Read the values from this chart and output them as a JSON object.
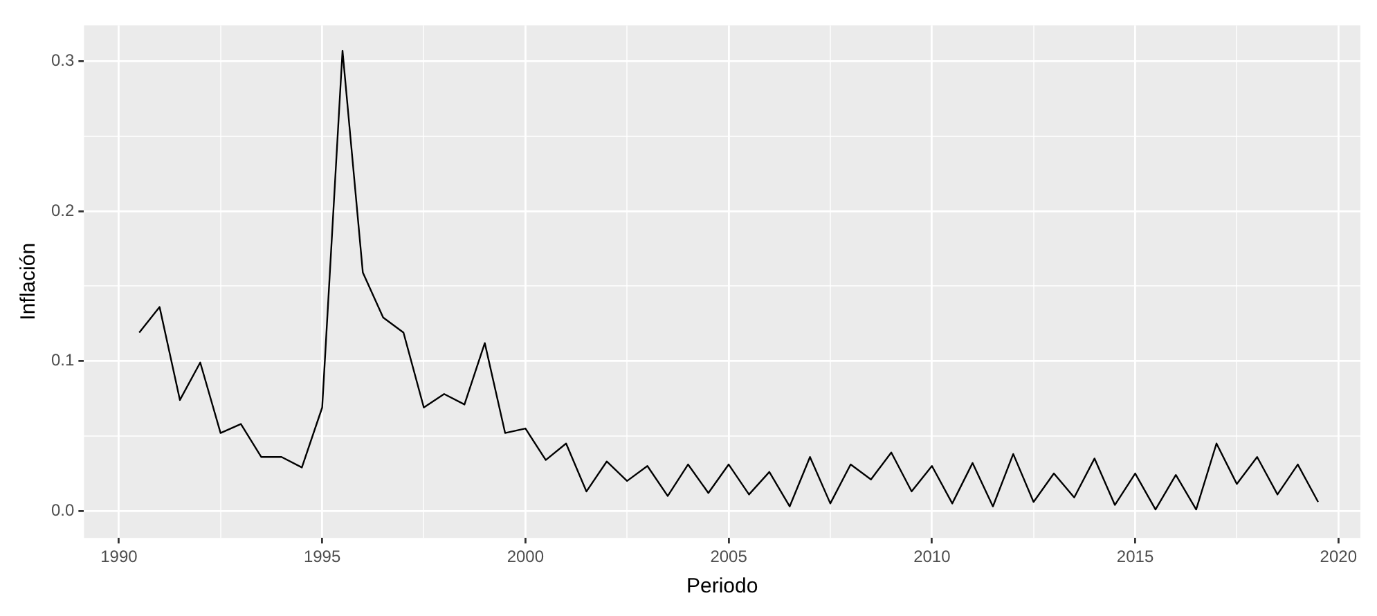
{
  "chart_data": {
    "type": "line",
    "xlabel": "Periodo",
    "ylabel": "Inflación",
    "x": [
      1990.5,
      1991,
      1991.5,
      1992,
      1992.5,
      1993,
      1993.5,
      1994,
      1994.5,
      1995,
      1995.5,
      1996,
      1996.5,
      1997,
      1997.5,
      1998,
      1998.5,
      1999,
      1999.5,
      2000,
      2000.5,
      2001,
      2001.5,
      2002,
      2002.5,
      2003,
      2003.5,
      2004,
      2004.5,
      2005,
      2005.5,
      2006,
      2006.5,
      2007,
      2007.5,
      2008,
      2008.5,
      2009,
      2009.5,
      2010,
      2010.5,
      2011,
      2011.5,
      2012,
      2012.5,
      2013,
      2013.5,
      2014,
      2014.5,
      2015,
      2015.5,
      2016,
      2016.5,
      2017,
      2017.5,
      2018,
      2018.5,
      2019,
      2019.5
    ],
    "series": [
      {
        "color": "#000000",
        "values": [
          0.119,
          0.136,
          0.074,
          0.099,
          0.052,
          0.058,
          0.036,
          0.036,
          0.029,
          0.069,
          0.307,
          0.159,
          0.129,
          0.119,
          0.069,
          0.078,
          0.071,
          0.112,
          0.052,
          0.055,
          0.034,
          0.045,
          0.013,
          0.033,
          0.02,
          0.03,
          0.01,
          0.031,
          0.012,
          0.031,
          0.011,
          0.026,
          0.003,
          0.036,
          0.005,
          0.031,
          0.021,
          0.039,
          0.013,
          0.03,
          0.005,
          0.032,
          0.003,
          0.038,
          0.006,
          0.025,
          0.009,
          0.035,
          0.004,
          0.025,
          0.001,
          0.024,
          0.001,
          0.045,
          0.018,
          0.036,
          0.011,
          0.031,
          0.006
        ]
      }
    ],
    "xlim": [
      1989.14,
      2020.54
    ],
    "xticks": [
      1990,
      {
        "value": 1992.5,
        "label": null
      },
      1995,
      {
        "value": 1997.5,
        "label": null
      },
      2000,
      {
        "value": 2002.5,
        "label": null
      },
      2005,
      {
        "value": 2007.5,
        "label": null
      },
      2010,
      {
        "value": 2012.5,
        "label": null
      },
      2015,
      {
        "value": 2017.5,
        "label": null
      },
      2020
    ],
    "ylim": [
      -0.018,
      0.324
    ],
    "yticks": [
      {
        "value": 0,
        "label": "0.0"
      },
      {
        "value": 0.05,
        "label": null
      },
      {
        "value": 0.1,
        "label": "0.1"
      },
      {
        "value": 0.15,
        "label": null
      },
      {
        "value": 0.2,
        "label": "0.2"
      },
      {
        "value": 0.25,
        "label": null
      },
      {
        "value": 0.3,
        "label": "0.3"
      }
    ],
    "grid": true,
    "legend": false,
    "marker": "none",
    "line_style": "solid"
  }
}
